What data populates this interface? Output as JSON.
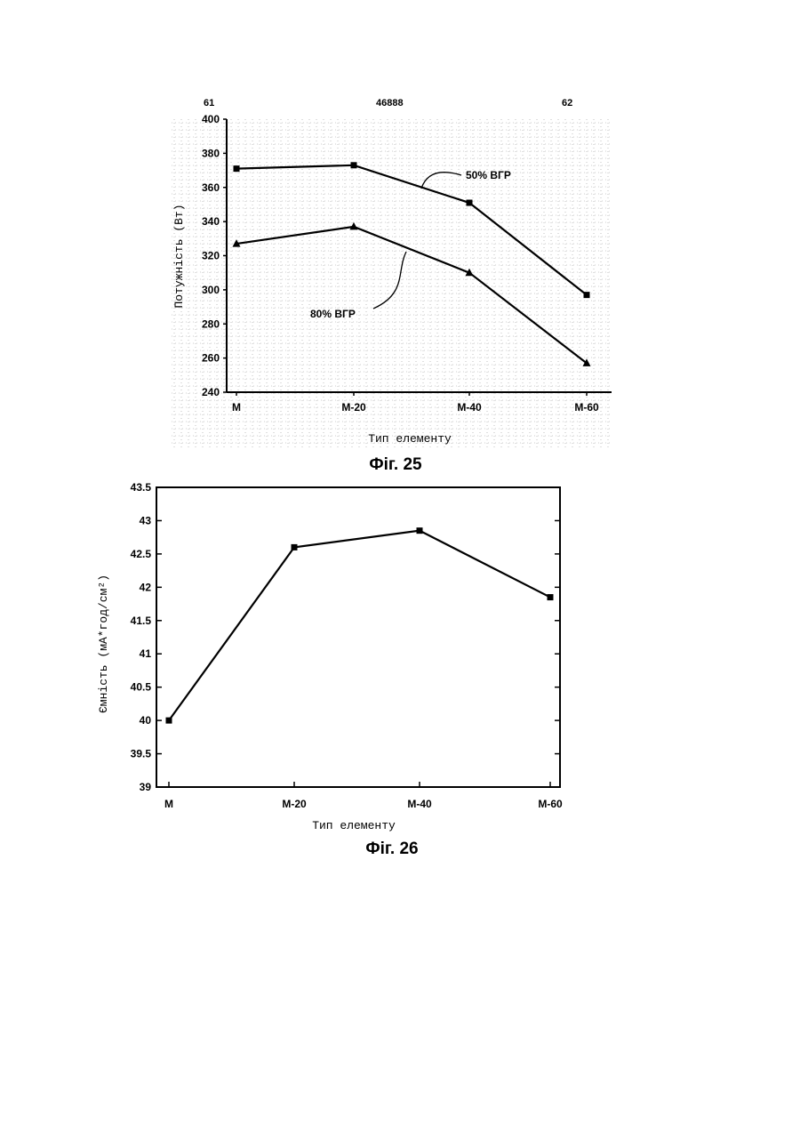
{
  "header": {
    "left": "61",
    "center": "46888",
    "right": "62"
  },
  "chart_data": [
    {
      "type": "line",
      "caption": "Фіг. 25",
      "xlabel": "Тип елементу",
      "ylabel": "Потужність (Вт)",
      "categories": [
        "M",
        "M-20",
        "M-40",
        "M-60"
      ],
      "ylim": [
        240,
        400
      ],
      "yticks": [
        240,
        260,
        280,
        300,
        320,
        340,
        360,
        380,
        400
      ],
      "grid": true,
      "series": [
        {
          "name": "50% ВГР",
          "marker": "square",
          "values": [
            371,
            373,
            351,
            297
          ]
        },
        {
          "name": "80% ВГР",
          "marker": "triangle",
          "values": [
            327,
            337,
            310,
            257
          ]
        }
      ]
    },
    {
      "type": "line",
      "caption": "Фіг. 26",
      "xlabel": "Тип елементу",
      "ylabel": "Ємність (мА*год/см²)",
      "categories": [
        "M",
        "M-20",
        "M-40",
        "M-60"
      ],
      "ylim": [
        39,
        43.5
      ],
      "yticks": [
        "39",
        "39.5",
        "40",
        "40.5",
        "41",
        "41.5",
        "42",
        "42.5",
        "43",
        "43.5"
      ],
      "grid": false,
      "series": [
        {
          "marker": "square",
          "values": [
            40.0,
            42.6,
            42.85,
            41.85
          ]
        }
      ]
    }
  ]
}
